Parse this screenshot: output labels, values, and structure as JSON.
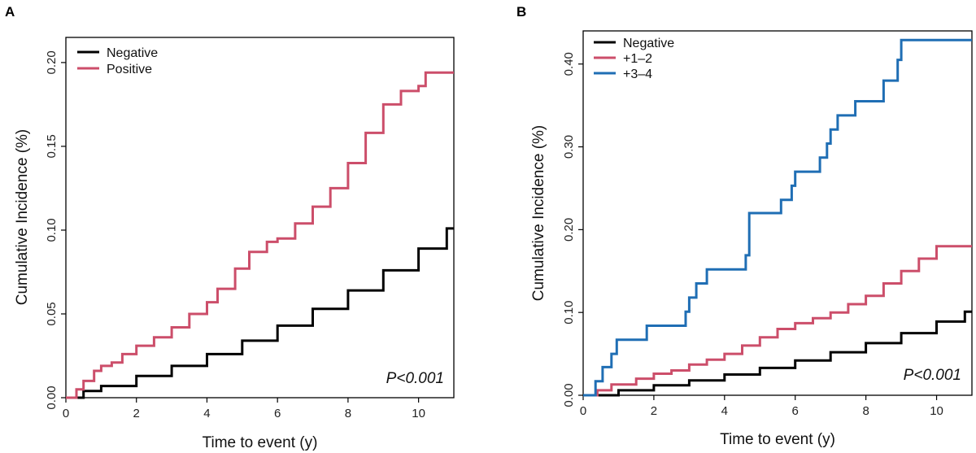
{
  "chart_data": [
    {
      "panel": "A",
      "type": "line",
      "step": true,
      "xlabel": "Time to event (y)",
      "ylabel": "Cumulative Incidence (%)",
      "xlim": [
        0,
        11
      ],
      "ylim": [
        0,
        0.215
      ],
      "xticks": [
        0,
        2,
        4,
        6,
        8,
        10
      ],
      "xtick_labels": [
        "0",
        "2",
        "4",
        "6",
        "8",
        "10"
      ],
      "yticks": [
        0,
        0.05,
        0.1,
        0.15,
        0.2
      ],
      "ytick_labels": [
        "0.00",
        "0.05",
        "0.10",
        "0.15",
        "0.20"
      ],
      "annotation": "P<0.001",
      "legend_position": "top-left",
      "series": [
        {
          "name": "Negative",
          "color": "#000000",
          "x": [
            0,
            0.5,
            1,
            2,
            3,
            4,
            5,
            6,
            7,
            8,
            9,
            10,
            10.8,
            11
          ],
          "y": [
            0,
            0.004,
            0.007,
            0.013,
            0.019,
            0.026,
            0.034,
            0.043,
            0.053,
            0.064,
            0.076,
            0.089,
            0.101,
            0.101
          ]
        },
        {
          "name": "Positive",
          "color": "#cc4e6a",
          "x": [
            0,
            0.3,
            0.5,
            0.8,
            1.0,
            1.3,
            1.6,
            2.0,
            2.5,
            3.0,
            3.5,
            4.0,
            4.3,
            4.8,
            5.2,
            5.7,
            6.0,
            6.5,
            7.0,
            7.5,
            8.0,
            8.5,
            9.0,
            9.5,
            10.0,
            10.2,
            11
          ],
          "y": [
            0,
            0.005,
            0.01,
            0.016,
            0.019,
            0.021,
            0.026,
            0.031,
            0.036,
            0.042,
            0.05,
            0.057,
            0.065,
            0.077,
            0.087,
            0.093,
            0.095,
            0.104,
            0.114,
            0.125,
            0.14,
            0.158,
            0.175,
            0.183,
            0.186,
            0.194,
            0.194
          ]
        }
      ]
    },
    {
      "panel": "B",
      "type": "line",
      "step": true,
      "xlabel": "Time to event (y)",
      "ylabel": "Cumulative Incidence (%)",
      "xlim": [
        0,
        11
      ],
      "ylim": [
        0,
        0.44
      ],
      "xticks": [
        0,
        2,
        4,
        6,
        8,
        10
      ],
      "xtick_labels": [
        "0",
        "2",
        "4",
        "6",
        "8",
        "10"
      ],
      "yticks": [
        0,
        0.1,
        0.2,
        0.3,
        0.4
      ],
      "ytick_labels": [
        "0.00",
        "0.10",
        "0.20",
        "0.30",
        "0.40"
      ],
      "annotation": "P<0.001",
      "legend_position": "top-left",
      "series": [
        {
          "name": "Negative",
          "color": "#000000",
          "x": [
            0,
            1,
            2,
            3,
            4,
            5,
            6,
            7,
            8,
            9,
            10,
            10.8,
            11
          ],
          "y": [
            0,
            0.006,
            0.012,
            0.018,
            0.025,
            0.033,
            0.042,
            0.052,
            0.063,
            0.075,
            0.089,
            0.101,
            0.101
          ]
        },
        {
          "name": "+1–2",
          "color": "#cc4e6a",
          "x": [
            0,
            0.4,
            0.8,
            1.5,
            2.0,
            2.5,
            3.0,
            3.5,
            4.0,
            4.5,
            5.0,
            5.5,
            6.0,
            6.5,
            7.0,
            7.5,
            8.0,
            8.5,
            9.0,
            9.5,
            10.0,
            11
          ],
          "y": [
            0,
            0.006,
            0.013,
            0.02,
            0.026,
            0.03,
            0.037,
            0.043,
            0.05,
            0.06,
            0.07,
            0.08,
            0.087,
            0.093,
            0.1,
            0.11,
            0.12,
            0.135,
            0.15,
            0.165,
            0.18,
            0.18
          ]
        },
        {
          "name": "+3–4",
          "color": "#1f6eb4",
          "x": [
            0,
            0.35,
            0.55,
            0.8,
            0.95,
            1.8,
            2.9,
            3.0,
            3.2,
            3.5,
            4.6,
            4.7,
            5.6,
            5.9,
            6.0,
            6.7,
            6.9,
            7.0,
            7.2,
            7.7,
            8.5,
            8.9,
            9.0,
            11
          ],
          "y": [
            0,
            0.017,
            0.034,
            0.05,
            0.067,
            0.084,
            0.101,
            0.118,
            0.135,
            0.152,
            0.169,
            0.22,
            0.236,
            0.253,
            0.27,
            0.287,
            0.304,
            0.321,
            0.338,
            0.355,
            0.38,
            0.405,
            0.429,
            0.429
          ]
        }
      ]
    }
  ]
}
